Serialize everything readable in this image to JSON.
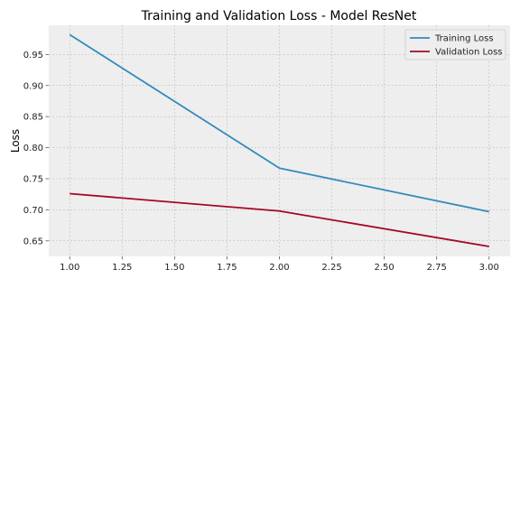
{
  "chart_data": {
    "type": "line",
    "title": "Training and Validation Loss - Model ResNet",
    "xlabel": "",
    "ylabel": "Loss",
    "xlim": [
      0.9,
      3.1
    ],
    "ylim": [
      0.625,
      0.997
    ],
    "xticks": [
      1.0,
      1.25,
      1.5,
      1.75,
      2.0,
      2.25,
      2.5,
      2.75,
      3.0
    ],
    "xtick_labels": [
      "1.00",
      "1.25",
      "1.50",
      "1.75",
      "2.00",
      "2.25",
      "2.50",
      "2.75",
      "3.00"
    ],
    "yticks": [
      0.65,
      0.7,
      0.75,
      0.8,
      0.85,
      0.9,
      0.95
    ],
    "ytick_labels": [
      "0.65",
      "0.70",
      "0.75",
      "0.80",
      "0.85",
      "0.90",
      "0.95"
    ],
    "grid": true,
    "legend_position": "top-right",
    "x": [
      1,
      2,
      3
    ],
    "series": [
      {
        "name": "Training Loss",
        "color": "#348ABD",
        "values": [
          0.982,
          0.767,
          0.697
        ]
      },
      {
        "name": "Validation Loss",
        "color": "#A60628",
        "values": [
          0.726,
          0.698,
          0.641
        ]
      }
    ]
  }
}
